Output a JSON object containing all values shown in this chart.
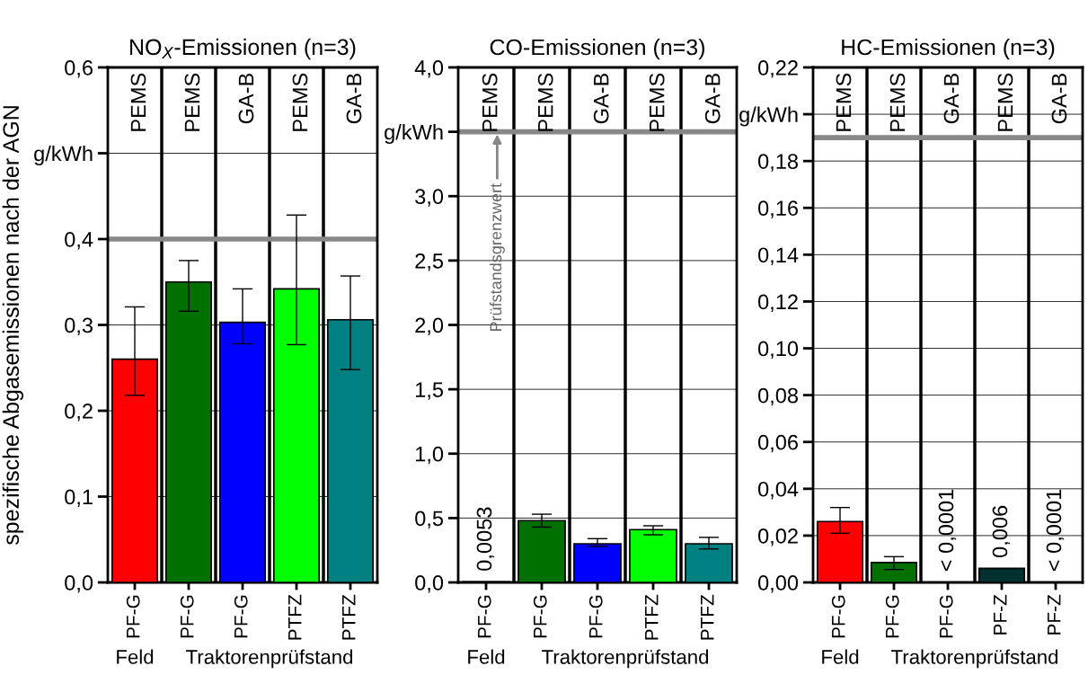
{
  "chart_data": [
    {
      "type": "bar",
      "title": "NO$_{X}$-Emissionen (n=3)",
      "ylabel": "spezifische Abgasemissionen nach der AGN",
      "categories": [
        "PF-G",
        "PF-G",
        "PF-G",
        "PTFZ",
        "PTFZ"
      ],
      "values": [
        0.26,
        0.35,
        0.303,
        0.342,
        0.306
      ],
      "errors": [
        [
          0.218,
          0.321
        ],
        [
          0.316,
          0.375
        ],
        [
          0.278,
          0.342
        ],
        [
          0.277,
          0.428
        ],
        [
          0.248,
          0.357
        ]
      ],
      "colors": [
        "#ff0000",
        "#007000",
        "#0000ff",
        "#00ff00",
        "#008080"
      ],
      "ylim": [
        0,
        0.6
      ],
      "yticks": [
        {
          "value": 0.0,
          "label": "0,0"
        },
        {
          "value": 0.1,
          "label": "0,1"
        },
        {
          "value": 0.2,
          "label": "0,2"
        },
        {
          "value": 0.3,
          "label": "0,3"
        },
        {
          "value": 0.4,
          "label": "0,4"
        },
        {
          "value": 0.5,
          "label": "g/kWh"
        },
        {
          "value": 0.6,
          "label": "0,6"
        }
      ],
      "ref_lines": [
        {
          "axis": "y",
          "value": 0.4,
          "color": "#888888"
        }
      ],
      "annotations": [
        "PEMS",
        "PEMS",
        "GA-B",
        "PEMS",
        "GA-B",
        "Feld",
        "Traktorenprüfstand"
      ],
      "grid": "y",
      "legend": false
    },
    {
      "type": "bar",
      "title": "CO-Emissionen (n=3)",
      "categories": [
        "PF-G",
        "PF-G",
        "PF-G",
        "PTFZ",
        "PTFZ"
      ],
      "values": [
        0.0053,
        0.48,
        0.3,
        0.41,
        0.3
      ],
      "errors": [
        null,
        [
          0.43,
          0.53
        ],
        [
          0.28,
          0.34
        ],
        [
          0.37,
          0.44
        ],
        [
          0.26,
          0.35
        ]
      ],
      "value_labels": [
        "0,0053",
        null,
        null,
        null,
        null
      ],
      "colors": [
        "#ff0000",
        "#007000",
        "#0000ff",
        "#00ff00",
        "#008080"
      ],
      "ylim": [
        0,
        4.0
      ],
      "yticks": [
        {
          "value": 0.0,
          "label": "0,0"
        },
        {
          "value": 0.5,
          "label": "0,5"
        },
        {
          "value": 1.0,
          "label": "1,0"
        },
        {
          "value": 1.5,
          "label": "1,5"
        },
        {
          "value": 2.0,
          "label": "2,0"
        },
        {
          "value": 2.5,
          "label": "2,5"
        },
        {
          "value": 3.0,
          "label": "3,0"
        },
        {
          "value": 3.5,
          "label": "g/kWh"
        },
        {
          "value": 4.0,
          "label": "4,0"
        }
      ],
      "ref_lines": [
        {
          "axis": "y",
          "value": 3.5,
          "label": "Prüfstandsgrenzwert",
          "color": "#888888"
        }
      ],
      "annotations": [
        "PEMS",
        "PEMS",
        "GA-B",
        "PEMS",
        "GA-B",
        "Feld",
        "Traktorenprüfstand"
      ],
      "grid": "y",
      "legend": false
    },
    {
      "type": "bar",
      "title": "HC-Emissionen (n=3)",
      "categories": [
        "PF-G",
        "PF-G",
        "PF-G",
        "PF-Z",
        "PF-Z"
      ],
      "values": [
        0.026,
        0.0085,
        0.0001,
        0.006,
        0.0001
      ],
      "errors": [
        [
          0.021,
          0.032
        ],
        [
          0.0055,
          0.011
        ],
        null,
        null,
        null
      ],
      "value_labels": [
        null,
        null,
        "< 0,0001",
        "0,006",
        "< 0,0001"
      ],
      "colors": [
        "#ff0000",
        "#007000",
        "#0000ff",
        "#003030",
        "#003030"
      ],
      "ylim": [
        0,
        0.22
      ],
      "yticks": [
        {
          "value": 0.0,
          "label": "0,00"
        },
        {
          "value": 0.02,
          "label": "0,02"
        },
        {
          "value": 0.04,
          "label": "0,04"
        },
        {
          "value": 0.06,
          "label": "0,06"
        },
        {
          "value": 0.08,
          "label": "0,08"
        },
        {
          "value": 0.1,
          "label": "0,10"
        },
        {
          "value": 0.12,
          "label": "0,12"
        },
        {
          "value": 0.14,
          "label": "0,14"
        },
        {
          "value": 0.16,
          "label": "0,16"
        },
        {
          "value": 0.18,
          "label": "0,18"
        },
        {
          "value": 0.2,
          "label": "g/kWh"
        },
        {
          "value": 0.22,
          "label": "0,22"
        }
      ],
      "ref_lines": [
        {
          "axis": "y",
          "value": 0.19,
          "color": "#888888"
        }
      ],
      "annotations": [
        "PEMS",
        "PEMS",
        "GA-B",
        "PEMS",
        "GA-B",
        "Feld",
        "Traktorenprüfstand"
      ],
      "grid": "y",
      "legend": false
    }
  ]
}
